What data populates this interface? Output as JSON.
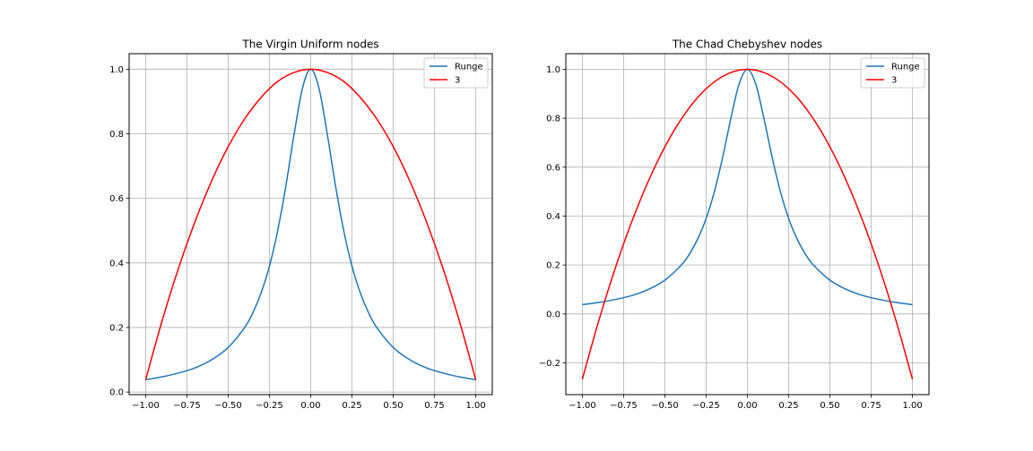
{
  "chart_data": [
    {
      "type": "line",
      "title": "The Virgin Uniform nodes",
      "xlabel": "",
      "ylabel": "",
      "xlim": [
        -1.1,
        1.1
      ],
      "ylim": [
        -0.008,
        1.048
      ],
      "grid": true,
      "legend": "top-right",
      "xticks": [
        -1.0,
        -0.75,
        -0.5,
        -0.25,
        0.0,
        0.25,
        0.5,
        0.75,
        1.0
      ],
      "xtick_labels": [
        "−1.00",
        "−0.75",
        "−0.50",
        "−0.25",
        "0.00",
        "0.25",
        "0.50",
        "0.75",
        "1.00"
      ],
      "yticks": [
        0.0,
        0.2,
        0.4,
        0.6,
        0.8,
        1.0
      ],
      "ytick_labels": [
        "0.0",
        "0.2",
        "0.4",
        "0.6",
        "0.8",
        "1.0"
      ],
      "series": [
        {
          "name": "Runge",
          "color": "#1f77b4",
          "x": [
            -1.0,
            -0.9,
            -0.8,
            -0.7,
            -0.6,
            -0.5,
            -0.4,
            -0.35,
            -0.3,
            -0.25,
            -0.2,
            -0.15,
            -0.1,
            -0.05,
            0.0,
            0.05,
            0.1,
            0.15,
            0.2,
            0.25,
            0.3,
            0.35,
            0.4,
            0.5,
            0.6,
            0.7,
            0.8,
            0.9,
            1.0
          ],
          "y": [
            0.038,
            0.047,
            0.059,
            0.075,
            0.1,
            0.138,
            0.2,
            0.246,
            0.308,
            0.39,
            0.5,
            0.64,
            0.8,
            0.941,
            1.0,
            0.941,
            0.8,
            0.64,
            0.5,
            0.39,
            0.308,
            0.246,
            0.2,
            0.138,
            0.1,
            0.075,
            0.059,
            0.047,
            0.038
          ]
        },
        {
          "name": "3",
          "color": "#ff0000",
          "x": [
            -1.0,
            -0.9,
            -0.8,
            -0.7,
            -0.6,
            -0.5,
            -0.4,
            -0.3,
            -0.2,
            -0.1,
            0.0,
            0.1,
            0.2,
            0.3,
            0.4,
            0.5,
            0.6,
            0.7,
            0.8,
            0.9,
            1.0
          ],
          "y": [
            0.038,
            0.221,
            0.385,
            0.529,
            0.654,
            0.76,
            0.846,
            0.913,
            0.962,
            0.99,
            1.0,
            0.99,
            0.962,
            0.913,
            0.846,
            0.76,
            0.654,
            0.529,
            0.385,
            0.221,
            0.038
          ]
        }
      ]
    },
    {
      "type": "line",
      "title": "The Chad Chebyshev nodes",
      "xlabel": "",
      "ylabel": "",
      "xlim": [
        -1.1,
        1.1
      ],
      "ylim": [
        -0.33,
        1.064
      ],
      "grid": true,
      "legend": "top-right",
      "xticks": [
        -1.0,
        -0.75,
        -0.5,
        -0.25,
        0.0,
        0.25,
        0.5,
        0.75,
        1.0
      ],
      "xtick_labels": [
        "−1.00",
        "−0.75",
        "−0.50",
        "−0.25",
        "0.00",
        "0.25",
        "0.50",
        "0.75",
        "1.00"
      ],
      "yticks": [
        -0.2,
        0.0,
        0.2,
        0.4,
        0.6,
        0.8,
        1.0
      ],
      "ytick_labels": [
        "−0.2",
        "0.0",
        "0.2",
        "0.4",
        "0.6",
        "0.8",
        "1.0"
      ],
      "series": [
        {
          "name": "Runge",
          "color": "#1f77b4",
          "x": [
            -1.0,
            -0.9,
            -0.8,
            -0.7,
            -0.6,
            -0.5,
            -0.4,
            -0.35,
            -0.3,
            -0.25,
            -0.2,
            -0.15,
            -0.1,
            -0.05,
            0.0,
            0.05,
            0.1,
            0.15,
            0.2,
            0.25,
            0.3,
            0.35,
            0.4,
            0.5,
            0.6,
            0.7,
            0.8,
            0.9,
            1.0
          ],
          "y": [
            0.038,
            0.047,
            0.059,
            0.075,
            0.1,
            0.138,
            0.2,
            0.246,
            0.308,
            0.39,
            0.5,
            0.64,
            0.8,
            0.941,
            1.0,
            0.941,
            0.8,
            0.64,
            0.5,
            0.39,
            0.308,
            0.246,
            0.2,
            0.138,
            0.1,
            0.075,
            0.059,
            0.047,
            0.038
          ]
        },
        {
          "name": "3",
          "color": "#ff0000",
          "x": [
            -1.0,
            -0.9,
            -0.8,
            -0.7,
            -0.6,
            -0.5,
            -0.4,
            -0.3,
            -0.2,
            -0.1,
            0.0,
            0.1,
            0.2,
            0.3,
            0.4,
            0.5,
            0.6,
            0.7,
            0.8,
            0.9,
            1.0
          ],
          "y": [
            -0.267,
            -0.027,
            0.188,
            0.378,
            0.543,
            0.683,
            0.797,
            0.886,
            0.949,
            0.987,
            1.0,
            0.987,
            0.949,
            0.886,
            0.797,
            0.683,
            0.543,
            0.378,
            0.188,
            -0.027,
            -0.267
          ]
        }
      ]
    }
  ]
}
